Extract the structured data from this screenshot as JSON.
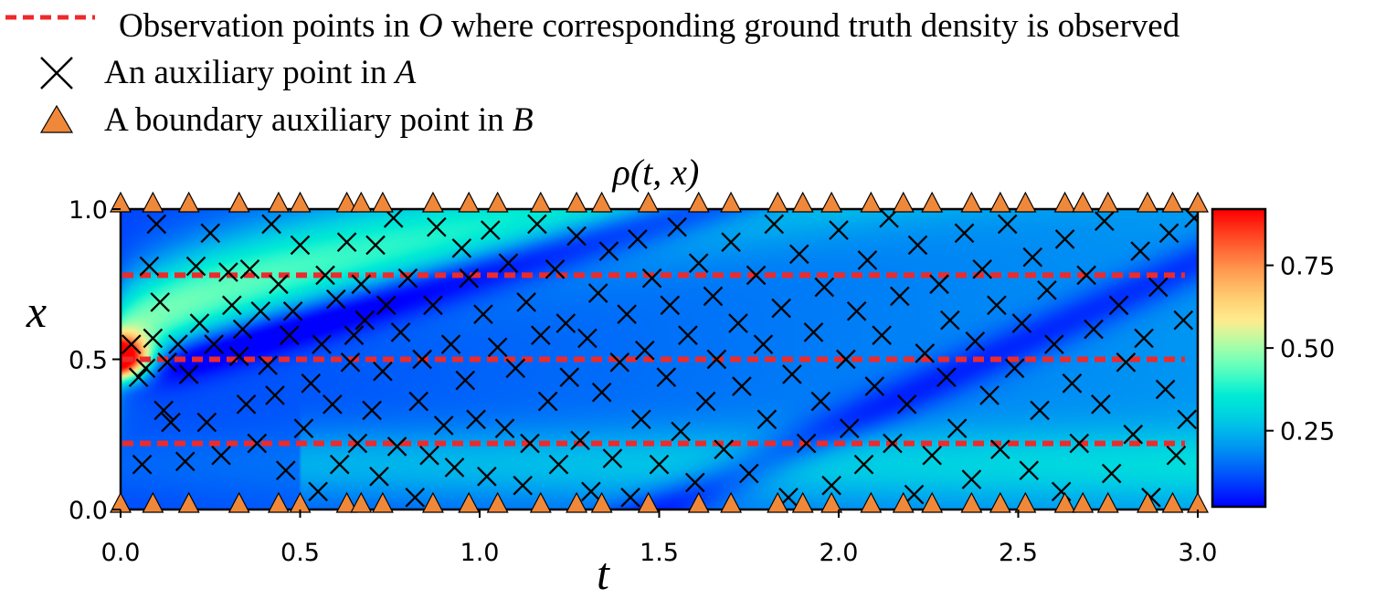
{
  "chart_data": {
    "type": "heatmap",
    "title": "ρ(t, x)",
    "xlabel": "t",
    "ylabel": "x",
    "xlim": [
      0.0,
      3.0
    ],
    "ylim": [
      0.0,
      1.0
    ],
    "xticks": [
      "0.0",
      "0.5",
      "1.0",
      "1.5",
      "2.0",
      "2.5",
      "3.0"
    ],
    "yticks": [
      "0.0",
      "0.5",
      "1.0"
    ],
    "colorbar": {
      "ticks": [
        "0.25",
        "0.50",
        "0.75"
      ],
      "tick_values": [
        0.25,
        0.5,
        0.75
      ],
      "range": [
        0.02,
        0.92
      ],
      "colormap": "rainbow"
    },
    "grid": false,
    "legend": {
      "placement": "top-left",
      "entries": [
        {
          "marker": "red-dashed-line",
          "prefix": "Observation points in ",
          "symbol": "O",
          "suffix": " where corresponding ground truth density is observed"
        },
        {
          "marker": "black-x",
          "prefix": "An auxiliary point in ",
          "symbol": "A",
          "suffix": ""
        },
        {
          "marker": "orange-triangle",
          "prefix": "A boundary auxiliary point in ",
          "symbol": "B",
          "suffix": ""
        }
      ]
    },
    "colors": {
      "observation": "#ee2a2a",
      "boundary_fill": "#f0883a",
      "auxiliary": "#000000"
    },
    "observation_lines_x": [
      0.22,
      0.5,
      0.78
    ],
    "boundary_t": [
      0.0,
      0.09,
      0.19,
      0.33,
      0.44,
      0.5,
      0.63,
      0.67,
      0.73,
      0.87,
      0.97,
      1.05,
      1.17,
      1.27,
      1.34,
      1.47,
      1.61,
      1.7,
      1.83,
      1.9,
      1.98,
      2.09,
      2.18,
      2.26,
      2.37,
      2.45,
      2.52,
      2.63,
      2.68,
      2.75,
      2.86,
      2.93,
      3.0
    ],
    "auxiliary_points": [
      [
        0.03,
        0.55
      ],
      [
        0.05,
        0.44
      ],
      [
        0.06,
        0.15
      ],
      [
        0.07,
        0.47
      ],
      [
        0.08,
        0.81
      ],
      [
        0.09,
        0.57
      ],
      [
        0.1,
        0.95
      ],
      [
        0.11,
        0.69
      ],
      [
        0.12,
        0.33
      ],
      [
        0.13,
        0.49
      ],
      [
        0.14,
        0.29
      ],
      [
        0.16,
        0.55
      ],
      [
        0.18,
        0.16
      ],
      [
        0.19,
        0.45
      ],
      [
        0.21,
        0.81
      ],
      [
        0.22,
        0.62
      ],
      [
        0.24,
        0.29
      ],
      [
        0.25,
        0.92
      ],
      [
        0.26,
        0.55
      ],
      [
        0.28,
        0.18
      ],
      [
        0.3,
        0.79
      ],
      [
        0.31,
        0.68
      ],
      [
        0.33,
        0.51
      ],
      [
        0.34,
        0.6
      ],
      [
        0.35,
        0.35
      ],
      [
        0.36,
        0.8
      ],
      [
        0.38,
        0.22
      ],
      [
        0.39,
        0.66
      ],
      [
        0.41,
        0.48
      ],
      [
        0.42,
        0.95
      ],
      [
        0.43,
        0.38
      ],
      [
        0.44,
        0.75
      ],
      [
        0.46,
        0.13
      ],
      [
        0.47,
        0.58
      ],
      [
        0.48,
        0.66
      ],
      [
        0.5,
        0.88
      ],
      [
        0.51,
        0.27
      ],
      [
        0.53,
        0.42
      ],
      [
        0.55,
        0.06
      ],
      [
        0.56,
        0.55
      ],
      [
        0.57,
        0.78
      ],
      [
        0.59,
        0.35
      ],
      [
        0.6,
        0.7
      ],
      [
        0.61,
        0.15
      ],
      [
        0.63,
        0.89
      ],
      [
        0.64,
        0.49
      ],
      [
        0.65,
        0.58
      ],
      [
        0.66,
        0.22
      ],
      [
        0.67,
        0.75
      ],
      [
        0.68,
        0.63
      ],
      [
        0.7,
        0.33
      ],
      [
        0.71,
        0.88
      ],
      [
        0.72,
        0.11
      ],
      [
        0.73,
        0.46
      ],
      [
        0.74,
        0.68
      ],
      [
        0.76,
        0.97
      ],
      [
        0.77,
        0.21
      ],
      [
        0.78,
        0.59
      ],
      [
        0.8,
        0.77
      ],
      [
        0.82,
        0.04
      ],
      [
        0.83,
        0.36
      ],
      [
        0.84,
        0.5
      ],
      [
        0.86,
        0.18
      ],
      [
        0.87,
        0.68
      ],
      [
        0.88,
        0.94
      ],
      [
        0.9,
        0.28
      ],
      [
        0.92,
        0.55
      ],
      [
        0.93,
        0.14
      ],
      [
        0.95,
        0.87
      ],
      [
        0.96,
        0.43
      ],
      [
        0.97,
        0.77
      ],
      [
        0.99,
        0.3
      ],
      [
        1.01,
        0.65
      ],
      [
        1.02,
        0.11
      ],
      [
        1.03,
        0.93
      ],
      [
        1.05,
        0.54
      ],
      [
        1.07,
        0.27
      ],
      [
        1.08,
        0.82
      ],
      [
        1.1,
        0.47
      ],
      [
        1.12,
        0.08
      ],
      [
        1.13,
        0.69
      ],
      [
        1.14,
        0.22
      ],
      [
        1.16,
        0.95
      ],
      [
        1.17,
        0.58
      ],
      [
        1.19,
        0.36
      ],
      [
        1.21,
        0.8
      ],
      [
        1.22,
        0.15
      ],
      [
        1.24,
        0.62
      ],
      [
        1.25,
        0.44
      ],
      [
        1.27,
        0.91
      ],
      [
        1.28,
        0.23
      ],
      [
        1.3,
        0.57
      ],
      [
        1.31,
        0.06
      ],
      [
        1.33,
        0.72
      ],
      [
        1.34,
        0.39
      ],
      [
        1.36,
        0.86
      ],
      [
        1.37,
        0.17
      ],
      [
        1.39,
        0.49
      ],
      [
        1.41,
        0.65
      ],
      [
        1.42,
        0.04
      ],
      [
        1.44,
        0.9
      ],
      [
        1.45,
        0.3
      ],
      [
        1.46,
        0.53
      ],
      [
        1.48,
        0.77
      ],
      [
        1.5,
        0.15
      ],
      [
        1.52,
        0.44
      ],
      [
        1.53,
        0.68
      ],
      [
        1.55,
        0.94
      ],
      [
        1.56,
        0.26
      ],
      [
        1.58,
        0.58
      ],
      [
        1.6,
        0.09
      ],
      [
        1.61,
        0.82
      ],
      [
        1.63,
        0.36
      ],
      [
        1.65,
        0.71
      ],
      [
        1.66,
        0.5
      ],
      [
        1.68,
        0.2
      ],
      [
        1.7,
        0.89
      ],
      [
        1.72,
        0.62
      ],
      [
        1.73,
        0.41
      ],
      [
        1.75,
        0.12
      ],
      [
        1.77,
        0.78
      ],
      [
        1.79,
        0.55
      ],
      [
        1.8,
        0.3
      ],
      [
        1.82,
        0.95
      ],
      [
        1.84,
        0.67
      ],
      [
        1.86,
        0.04
      ],
      [
        1.87,
        0.45
      ],
      [
        1.89,
        0.85
      ],
      [
        1.91,
        0.22
      ],
      [
        1.93,
        0.59
      ],
      [
        1.95,
        0.36
      ],
      [
        1.96,
        0.74
      ],
      [
        1.98,
        0.08
      ],
      [
        2.0,
        0.93
      ],
      [
        2.02,
        0.5
      ],
      [
        2.03,
        0.27
      ],
      [
        2.05,
        0.66
      ],
      [
        2.07,
        0.15
      ],
      [
        2.08,
        0.83
      ],
      [
        2.1,
        0.41
      ],
      [
        2.12,
        0.58
      ],
      [
        2.14,
        0.97
      ],
      [
        2.15,
        0.22
      ],
      [
        2.17,
        0.71
      ],
      [
        2.19,
        0.35
      ],
      [
        2.21,
        0.05
      ],
      [
        2.22,
        0.88
      ],
      [
        2.24,
        0.52
      ],
      [
        2.26,
        0.18
      ],
      [
        2.28,
        0.75
      ],
      [
        2.3,
        0.44
      ],
      [
        2.31,
        0.63
      ],
      [
        2.33,
        0.27
      ],
      [
        2.35,
        0.92
      ],
      [
        2.37,
        0.1
      ],
      [
        2.38,
        0.56
      ],
      [
        2.4,
        0.8
      ],
      [
        2.42,
        0.38
      ],
      [
        2.44,
        0.68
      ],
      [
        2.45,
        0.2
      ],
      [
        2.47,
        0.95
      ],
      [
        2.49,
        0.47
      ],
      [
        2.51,
        0.62
      ],
      [
        2.53,
        0.13
      ],
      [
        2.54,
        0.84
      ],
      [
        2.56,
        0.33
      ],
      [
        2.58,
        0.73
      ],
      [
        2.6,
        0.55
      ],
      [
        2.62,
        0.06
      ],
      [
        2.63,
        0.9
      ],
      [
        2.65,
        0.42
      ],
      [
        2.67,
        0.22
      ],
      [
        2.69,
        0.78
      ],
      [
        2.71,
        0.6
      ],
      [
        2.73,
        0.35
      ],
      [
        2.74,
        0.96
      ],
      [
        2.76,
        0.12
      ],
      [
        2.78,
        0.68
      ],
      [
        2.8,
        0.49
      ],
      [
        2.82,
        0.25
      ],
      [
        2.84,
        0.86
      ],
      [
        2.85,
        0.57
      ],
      [
        2.87,
        0.04
      ],
      [
        2.89,
        0.74
      ],
      [
        2.91,
        0.4
      ],
      [
        2.92,
        0.92
      ],
      [
        2.94,
        0.18
      ],
      [
        2.96,
        0.63
      ],
      [
        2.97,
        0.3
      ],
      [
        2.99,
        0.97
      ]
    ]
  }
}
